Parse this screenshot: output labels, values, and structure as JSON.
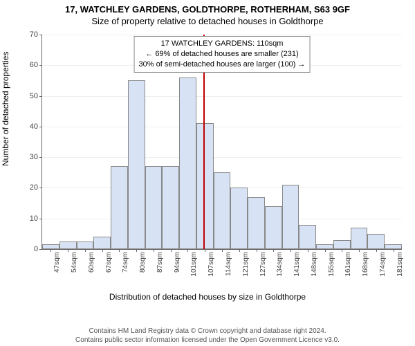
{
  "header": {
    "title1": "17, WATCHLEY GARDENS, GOLDTHORPE, ROTHERHAM, S63 9GF",
    "title2": "Size of property relative to detached houses in Goldthorpe"
  },
  "chart": {
    "type": "histogram",
    "ylabel": "Number of detached properties",
    "xlabel": "Distribution of detached houses by size in Goldthorpe",
    "ylim": [
      0,
      70
    ],
    "ytick_step": 10,
    "yticks": [
      0,
      10,
      20,
      30,
      40,
      50,
      60,
      70
    ],
    "bar_color": "#d7e3f4",
    "bar_border": "#888888",
    "grid_color": "#eeeeee",
    "axis_color": "#666666",
    "background_color": "#ffffff",
    "reference_line": {
      "x_index": 9.4,
      "color": "#c00000",
      "width": 2
    },
    "categories": [
      "47sqm",
      "54sqm",
      "60sqm",
      "67sqm",
      "74sqm",
      "80sqm",
      "87sqm",
      "94sqm",
      "101sqm",
      "107sqm",
      "114sqm",
      "121sqm",
      "127sqm",
      "134sqm",
      "141sqm",
      "148sqm",
      "155sqm",
      "161sqm",
      "168sqm",
      "174sqm",
      "181sqm"
    ],
    "values": [
      1.5,
      2.5,
      2.5,
      4,
      27,
      55,
      27,
      27,
      56,
      41,
      25,
      20,
      17,
      14,
      21,
      8,
      1.5,
      3,
      7,
      5,
      1.5
    ],
    "annotation": {
      "line1": "17 WATCHLEY GARDENS: 110sqm",
      "line2": "← 69% of detached houses are smaller (231)",
      "line3": "30% of semi-detached houses are larger (100) →",
      "border_color": "#888888",
      "bg_color": "#ffffff",
      "fontsize": 11
    }
  },
  "footer": {
    "line1": "Contains HM Land Registry data © Crown copyright and database right 2024.",
    "line2": "Contains public sector information licensed under the Open Government Licence v3.0."
  }
}
